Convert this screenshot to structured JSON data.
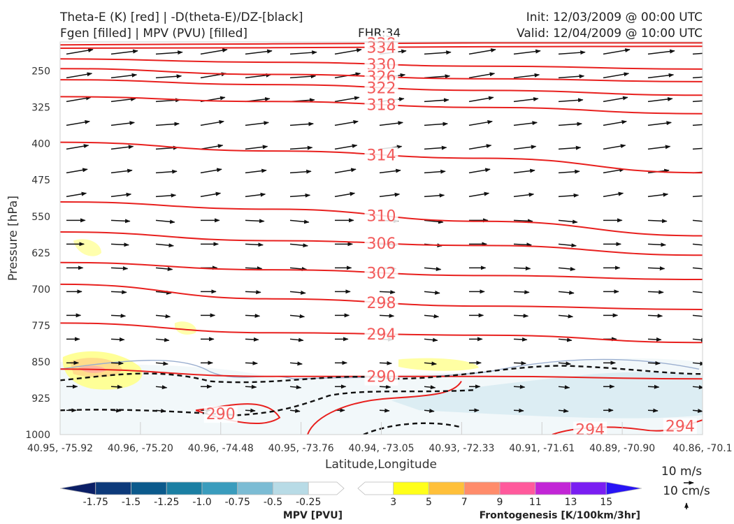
{
  "header": {
    "title_left_1": "Theta-E (K) [red] | -D(theta-E)/DZ-[black]",
    "title_left_2": "Fgen [filled] | MPV (PVU) [filled]",
    "fhr": "FHR:34",
    "init": "Init: 12/03/2009 @ 00:00 UTC",
    "valid": "Valid: 12/04/2009 @ 10:00 UTC"
  },
  "chart_data": {
    "type": "cross-section",
    "xlabel": "Latitude,Longitude",
    "ylabel": "Pressure [hPa]",
    "x_ticks": [
      "40.95, -75.92",
      "40.96, -75.20",
      "40.96, -74.48",
      "40.95, -73.76",
      "40.94, -73.05",
      "40.93, -72.33",
      "40.91, -71.61",
      "40.89, -70.90",
      "40.86, -70.1"
    ],
    "y_ticks": [
      250,
      325,
      400,
      475,
      550,
      625,
      700,
      775,
      850,
      925,
      1000
    ],
    "ylim": [
      1000,
      190
    ],
    "grid": false,
    "theta_e_contours": [
      {
        "value": 338,
        "label": "338",
        "y": [
          196,
          194,
          192,
          192
        ],
        "label_x": 0.5
      },
      {
        "value": 334,
        "label": "334",
        "y": [
          203,
          202,
          200,
          199
        ],
        "label_x": 0.5
      },
      {
        "value": 330,
        "label": "330",
        "y": [
          225,
          232,
          240,
          246
        ],
        "label_x": 0.5
      },
      {
        "value": 326,
        "label": "326",
        "y": [
          245,
          257,
          266,
          272
        ],
        "label_x": 0.5
      },
      {
        "value": 322,
        "label": "322",
        "y": [
          268,
          278,
          290,
          300
        ],
        "label_x": 0.5
      },
      {
        "value": 318,
        "label": "318",
        "y": [
          303,
          313,
          325,
          338
        ],
        "label_x": 0.5
      },
      {
        "value": 314,
        "label": "314",
        "y": [
          397,
          415,
          430,
          460
        ],
        "label_x": 0.5
      },
      {
        "value": 310,
        "label": "310",
        "y": [
          520,
          535,
          560,
          590
        ],
        "label_x": 0.5
      },
      {
        "value": 306,
        "label": "306",
        "y": [
          582,
          600,
          610,
          630
        ],
        "label_x": 0.5
      },
      {
        "value": 302,
        "label": "302",
        "y": [
          645,
          660,
          672,
          680
        ],
        "label_x": 0.5
      },
      {
        "value": 298,
        "label": "298",
        "y": [
          690,
          720,
          735,
          742
        ],
        "label_x": 0.5
      },
      {
        "value": 294,
        "label": "294",
        "y": [
          770,
          790,
          795,
          810
        ],
        "label_x": 0.5
      },
      {
        "value": 290,
        "label": "290",
        "y": [
          865,
          880,
          880,
          885
        ],
        "label_x": 0.5
      }
    ],
    "bottom_labels": [
      {
        "label": "290",
        "x": 0.25,
        "p": 960
      },
      {
        "label": "294",
        "x": 0.825,
        "p": 992
      },
      {
        "label": "294",
        "x": 0.965,
        "p": 985
      }
    ],
    "wind_vectors": "uniform westerly to southwesterly flow, stronger aloft",
    "colorbar_mpv": {
      "title": "MPV [PVU]",
      "labels": [
        "-1.75",
        "-1.5",
        "-1.25",
        "-1.0",
        "-0.75",
        "-0.5",
        "-0.25"
      ],
      "colors": [
        "#0b1f66",
        "#0d3a7a",
        "#0c5a8c",
        "#1b7fa3",
        "#3a9cbd",
        "#7cbcd4",
        "#b8dbe6",
        "#ffffff"
      ]
    },
    "colorbar_fgen": {
      "title": "Frontogenesis [K/100km/3hr]",
      "labels": [
        "3",
        "5",
        "7",
        "9",
        "11",
        "13",
        "15"
      ],
      "colors": [
        "#ffffff",
        "#ffff1a",
        "#ffc03a",
        "#ff8c6b",
        "#ff5a9c",
        "#c226d6",
        "#7a1ef2",
        "#2814f5"
      ]
    },
    "vector_key": {
      "speed": "10 m/s",
      "vertical": "10 cm/s"
    }
  }
}
